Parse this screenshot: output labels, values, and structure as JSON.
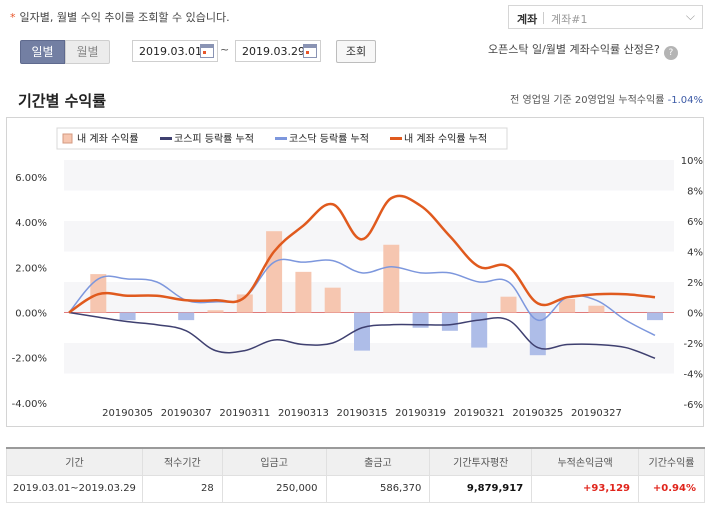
{
  "header": {
    "notice_star": "*",
    "notice": "일자별, 월별 수익 추이를 조회할 수 있습니다.",
    "account_label": "계좌",
    "account_value": "계좌#1"
  },
  "controls": {
    "daily_label": "일별",
    "monthly_label": "월별",
    "start_date": "2019.03.01",
    "tilde": "~",
    "end_date": "2019.03.29",
    "search_label": "조회",
    "help_text": "오픈스탁 일/월별 계좌수익률 산정은?",
    "help_glyph": "?"
  },
  "section": {
    "title": "기간별 수익률",
    "cum_note_prefix": "전 영업일 기준 20영업일 누적수익률",
    "cum_note_value": "-1.04%"
  },
  "colors": {
    "my_daily": "#f6c6b0",
    "kospi": "#3f4070",
    "kosdaq": "#7d97dd",
    "kosdaq_bar": "#aebde8",
    "my_cum": "#e05a1e",
    "zero_line": "#e07a7a"
  },
  "chart_data": {
    "type": "bar",
    "legend": [
      "내 계좌 수익률",
      "코스피 등락률 누적",
      "코스닥 등락률 누적",
      "내 계좌 수익률 누적"
    ],
    "x_tick_labels": [
      "20190305",
      "20190307",
      "20190311",
      "20190313",
      "20190315",
      "20190319",
      "20190321",
      "20190325",
      "20190327"
    ],
    "y_left_ticks": [
      "6.00%",
      "4.00%",
      "2.00%",
      "0.00%",
      "-2.00%",
      "-4.00%",
      "-6.00%"
    ],
    "y_right_ticks": [
      "10%",
      "8%",
      "6%",
      "4%",
      "2%",
      "0%",
      "-2%",
      "-4%",
      "-6%"
    ],
    "y_left_range": [
      -7,
      7
    ],
    "y_right_range": [
      -6,
      10
    ],
    "x": [
      "20190301",
      "20190304",
      "20190305",
      "20190306",
      "20190307",
      "20190308",
      "20190311",
      "20190312",
      "20190313",
      "20190314",
      "20190315",
      "20190318",
      "20190319",
      "20190320",
      "20190321",
      "20190322",
      "20190325",
      "20190326",
      "20190327",
      "20190328",
      "20190329"
    ],
    "series": [
      {
        "name": "내 계좌 수익률",
        "axis": "left",
        "kind": "bar",
        "values": [
          null,
          1.7,
          0,
          0,
          0,
          0.1,
          0.8,
          3.6,
          1.8,
          1.1,
          0,
          3.0,
          0,
          0,
          0,
          0.7,
          0,
          0.6,
          0.3,
          0,
          0
        ]
      },
      {
        "name": "코스닥 등락률 누적",
        "axis": "right",
        "kind": "bar",
        "values": [
          null,
          0,
          -0.5,
          0,
          -0.5,
          0,
          0,
          0,
          0,
          0,
          -2.5,
          0,
          -1.0,
          -1.2,
          -2.3,
          0,
          -2.8,
          0,
          0,
          0,
          -0.5
        ]
      },
      {
        "name": "코스닥 등락률 누적",
        "axis": "right",
        "kind": "line",
        "values": [
          0,
          2.2,
          2.2,
          2.0,
          0.8,
          0.7,
          1.0,
          3.3,
          3.3,
          3.4,
          2.6,
          3.0,
          2.6,
          2.6,
          2.0,
          2.0,
          -0.5,
          1.0,
          0.8,
          -0.5,
          -1.5
        ]
      },
      {
        "name": "코스피 등락률 누적",
        "axis": "right",
        "kind": "line",
        "values": [
          0,
          -0.3,
          -0.6,
          -0.8,
          -1.2,
          -2.5,
          -2.5,
          -1.8,
          -2.1,
          -2.0,
          -1.0,
          -0.8,
          -0.8,
          -0.8,
          -0.5,
          -0.5,
          -2.3,
          -2.1,
          -2.1,
          -2.3,
          -3.0
        ]
      },
      {
        "name": "내 계좌 수익률 누적",
        "axis": "right",
        "kind": "line",
        "values": [
          0,
          1.2,
          1.1,
          1.1,
          0.8,
          0.8,
          1.0,
          4.0,
          5.7,
          7.1,
          4.8,
          7.5,
          7.0,
          5.0,
          3.0,
          3.0,
          0.6,
          1.0,
          1.2,
          1.2,
          1.0
        ]
      }
    ]
  },
  "summary": {
    "headers": [
      "기간",
      "적수기간",
      "입금고",
      "출금고",
      "기간투자평잔",
      "누적손익금액",
      "기간수익률"
    ],
    "row": [
      "2019.03.01~2019.03.29",
      "28",
      "250,000",
      "586,370",
      "9,879,917",
      "+93,129",
      "+0.94%"
    ]
  }
}
